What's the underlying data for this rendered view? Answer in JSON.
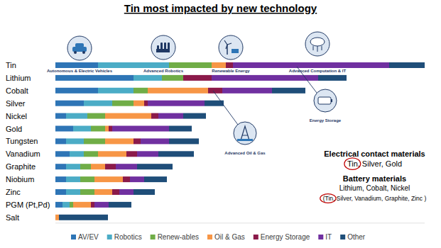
{
  "chart_data": {
    "type": "bar",
    "orientation": "horizontal",
    "stacked": true,
    "title": "Tin most impacted by new technology",
    "categories": [
      "Tin",
      "Lithium",
      "Cobalt",
      "Silver",
      "Nickel",
      "Gold",
      "Tungsten",
      "Vanadium",
      "Graphite",
      "Niobium",
      "Zinc",
      "PGM (Pt,Pd)",
      "Salt"
    ],
    "series": [
      {
        "name": "AV/EV",
        "color": "#2e75b6",
        "values": [
          60,
          110,
          60,
          40,
          15,
          25,
          15,
          20,
          15,
          15,
          15,
          10,
          0
        ]
      },
      {
        "name": "Robotics",
        "color": "#4bacc6",
        "values": [
          100,
          40,
          50,
          40,
          30,
          25,
          25,
          20,
          20,
          20,
          20,
          10,
          0
        ]
      },
      {
        "name": "Renew-ables",
        "color": "#70ad47",
        "values": [
          60,
          30,
          20,
          30,
          25,
          20,
          30,
          20,
          15,
          20,
          20,
          5,
          0
        ]
      },
      {
        "name": "Oil & Gas",
        "color": "#f79646",
        "values": [
          20,
          0,
          85,
          15,
          65,
          5,
          40,
          40,
          20,
          40,
          25,
          25,
          5
        ]
      },
      {
        "name": "Energy Storage",
        "color": "#8b1a4a",
        "values": [
          10,
          40,
          20,
          5,
          10,
          5,
          10,
          15,
          15,
          10,
          10,
          5,
          0
        ]
      },
      {
        "name": "IT",
        "color": "#7030a0",
        "values": [
          220,
          150,
          70,
          80,
          35,
          80,
          40,
          30,
          30,
          20,
          20,
          20,
          0
        ]
      },
      {
        "name": "Other",
        "color": "#1f4e79",
        "values": [
          50,
          40,
          47,
          27,
          32,
          32,
          42,
          50,
          50,
          32,
          30,
          32,
          69
        ]
      }
    ],
    "xlim": [
      0,
      520
    ],
    "tick_labels": "y",
    "legend": "bottom",
    "annotations": {
      "icons": [
        "Autonomous & Electric Vehicles",
        "Advanced Robotics",
        "Renewable Energy",
        "Advanced Computation & IT",
        "Energy Storage",
        "Advanced Oil & Gas"
      ],
      "box": [
        "Electrical contact materials",
        "Tin, Silver, Gold",
        "Battery materials",
        "Lithium, Cobalt, Nickel",
        "(Tin, Silver, Vanadium, Graphite, Zinc )"
      ]
    }
  }
}
